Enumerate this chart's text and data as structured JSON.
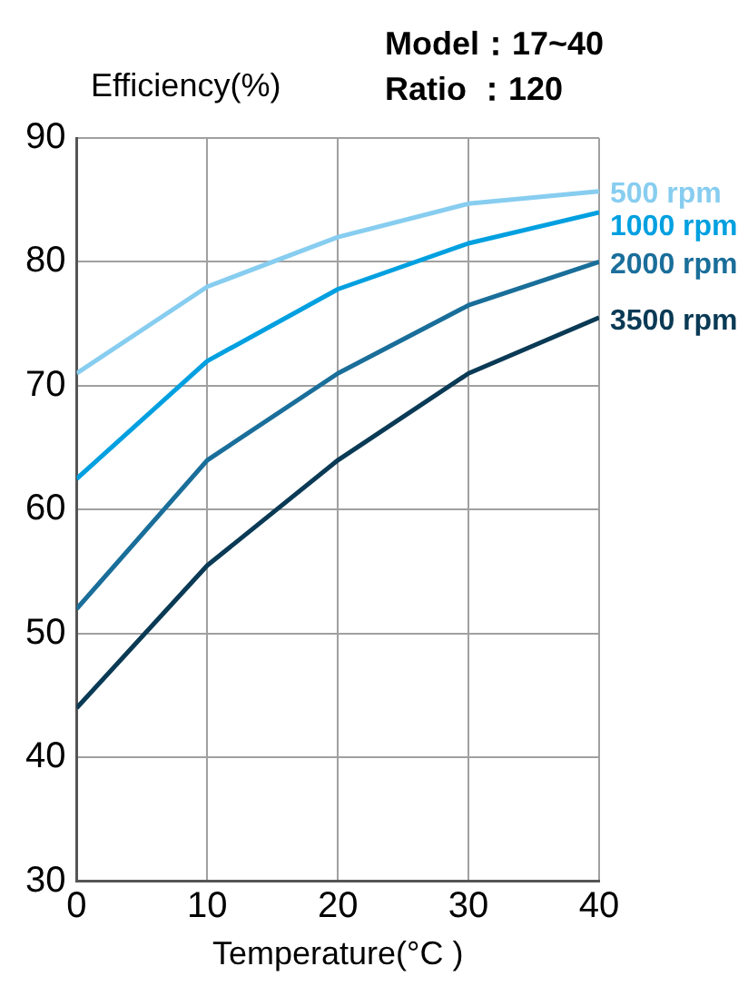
{
  "chart_data": {
    "type": "line",
    "title": "Model：17~40",
    "subtitle": "Ratio ：120",
    "xlabel": "Temperature(°C )",
    "ylabel": "Efficiency(%)",
    "x": [
      0,
      10,
      20,
      30,
      40
    ],
    "series": [
      {
        "name": "500 rpm",
        "color": "#87cdf0",
        "values": [
          71,
          78,
          82,
          84.7,
          85.7
        ]
      },
      {
        "name": "1000 rpm",
        "color": "#00a0e0",
        "values": [
          62.5,
          72,
          77.8,
          81.5,
          84
        ]
      },
      {
        "name": "2000 rpm",
        "color": "#1a6e9a",
        "values": [
          52,
          64,
          71,
          76.5,
          80
        ]
      },
      {
        "name": "3500 rpm",
        "color": "#0a3a55",
        "values": [
          44,
          55.5,
          64,
          71,
          75.5
        ]
      }
    ],
    "xlim": [
      0,
      40
    ],
    "xticks": [
      0,
      10,
      20,
      30,
      40
    ],
    "ylim": [
      30,
      90
    ],
    "yticks": [
      30,
      40,
      50,
      60,
      70,
      80,
      90
    ],
    "grid": true,
    "legend": false,
    "marker": "none",
    "line_style": "solid"
  }
}
